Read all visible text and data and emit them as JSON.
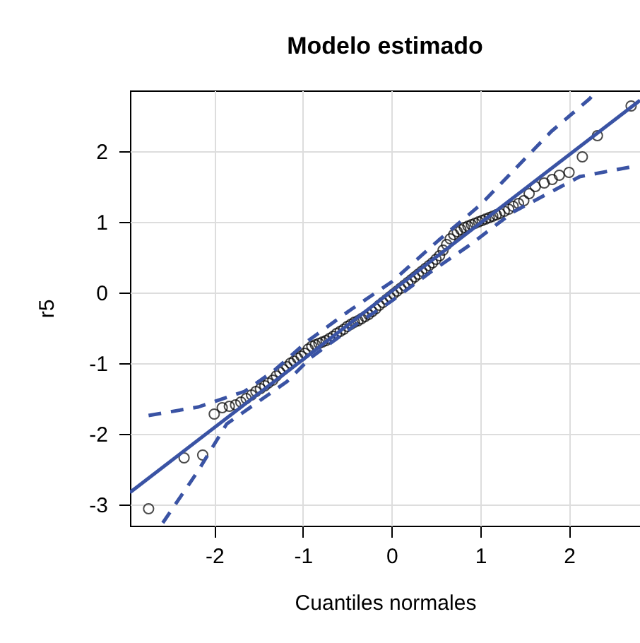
{
  "chart_data": {
    "type": "scatter",
    "title": "Modelo estimado",
    "xlabel": "Cuantiles normales",
    "ylabel": "r5",
    "xlim": [
      -2.95,
      2.8
    ],
    "ylim": [
      -3.3,
      2.86
    ],
    "xticks": [
      -2,
      -1,
      0,
      1,
      2
    ],
    "yticks": [
      -3,
      -2,
      -1,
      0,
      1,
      2
    ],
    "grid": true,
    "series": [
      {
        "color": "#000000",
        "marker": "circle",
        "x": [
          -2.74,
          -2.34,
          -2.13,
          -2.0,
          -1.91,
          -1.83,
          -1.76,
          -1.7,
          -1.64,
          -1.58,
          -1.53,
          -1.48,
          -1.43,
          -1.39,
          -1.34,
          -1.3,
          -1.26,
          -1.22,
          -1.18,
          -1.14,
          -1.1,
          -1.06,
          -1.02,
          -0.98,
          -0.94,
          -0.9,
          -0.86,
          -0.82,
          -0.78,
          -0.74,
          -0.7,
          -0.66,
          -0.62,
          -0.58,
          -0.54,
          -0.5,
          -0.46,
          -0.42,
          -0.38,
          -0.34,
          -0.3,
          -0.26,
          -0.22,
          -0.18,
          -0.14,
          -0.1,
          -0.06,
          -0.02,
          0.02,
          0.06,
          0.1,
          0.14,
          0.18,
          0.22,
          0.26,
          0.3,
          0.34,
          0.38,
          0.42,
          0.46,
          0.5,
          0.54,
          0.58,
          0.62,
          0.66,
          0.7,
          0.74,
          0.78,
          0.82,
          0.86,
          0.9,
          0.94,
          0.98,
          1.02,
          1.06,
          1.1,
          1.14,
          1.18,
          1.22,
          1.27,
          1.32,
          1.37,
          1.43,
          1.49,
          1.55,
          1.62,
          1.72,
          1.81,
          1.89,
          2.0,
          2.15,
          2.32,
          2.7
        ],
        "values": [
          -3.06,
          -2.34,
          -2.3,
          -1.72,
          -1.63,
          -1.61,
          -1.59,
          -1.55,
          -1.5,
          -1.45,
          -1.4,
          -1.36,
          -1.32,
          -1.28,
          -1.24,
          -1.18,
          -1.13,
          -1.09,
          -1.05,
          -1.0,
          -0.97,
          -0.93,
          -0.9,
          -0.86,
          -0.8,
          -0.76,
          -0.74,
          -0.72,
          -0.7,
          -0.68,
          -0.65,
          -0.62,
          -0.58,
          -0.55,
          -0.52,
          -0.48,
          -0.45,
          -0.42,
          -0.4,
          -0.37,
          -0.34,
          -0.31,
          -0.27,
          -0.23,
          -0.18,
          -0.14,
          -0.1,
          -0.06,
          -0.02,
          0.02,
          0.06,
          0.1,
          0.14,
          0.18,
          0.22,
          0.26,
          0.3,
          0.34,
          0.38,
          0.42,
          0.47,
          0.52,
          0.6,
          0.68,
          0.76,
          0.82,
          0.86,
          0.89,
          0.92,
          0.94,
          0.96,
          0.98,
          1.0,
          1.02,
          1.04,
          1.06,
          1.08,
          1.1,
          1.12,
          1.15,
          1.18,
          1.22,
          1.26,
          1.3,
          1.4,
          1.5,
          1.55,
          1.6,
          1.66,
          1.7,
          1.92,
          2.22,
          2.64
        ]
      },
      {
        "type": "line",
        "color": "#3a53a4",
        "line_style": "solid",
        "x": [
          -2.95,
          2.8
        ],
        "values": [
          -2.83,
          2.72
        ]
      },
      {
        "type": "line",
        "color": "#3a53a4",
        "line_style": "dashed",
        "x": [
          -2.74,
          -2.18,
          -1.66,
          -1.34,
          -0.96,
          -0.48,
          0.0,
          0.53,
          1.0,
          1.8,
          2.23,
          2.3
        ],
        "values": [
          -1.74,
          -1.62,
          -1.4,
          -1.12,
          -0.7,
          -0.26,
          0.15,
          0.74,
          1.24,
          2.28,
          2.74,
          2.84
        ]
      },
      {
        "type": "line",
        "color": "#3a53a4",
        "line_style": "dashed",
        "x": [
          -2.58,
          -2.18,
          -1.86,
          -1.18,
          -0.91,
          -0.4,
          0.0,
          0.45,
          0.89,
          1.37,
          2.12,
          2.71
        ],
        "values": [
          -3.26,
          -2.52,
          -1.86,
          -1.26,
          -0.92,
          -0.45,
          -0.12,
          0.3,
          0.68,
          1.14,
          1.64,
          1.78
        ]
      }
    ]
  }
}
